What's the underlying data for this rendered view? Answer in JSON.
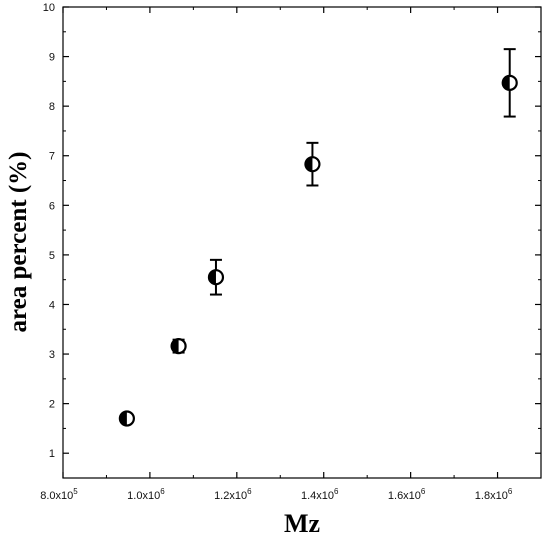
{
  "chart_data": {
    "type": "scatter",
    "xlabel": "Mz",
    "ylabel": "area percent (%)",
    "xlim": [
      800000,
      1900000
    ],
    "ylim": [
      0.5,
      10
    ],
    "x_ticks": [
      {
        "value": 800000,
        "mantissa": "8.0x10",
        "exp": "5"
      },
      {
        "value": 1000000,
        "mantissa": "1.0x10",
        "exp": "6"
      },
      {
        "value": 1200000,
        "mantissa": "1.2x10",
        "exp": "6"
      },
      {
        "value": 1400000,
        "mantissa": "1.4x10",
        "exp": "6"
      },
      {
        "value": 1600000,
        "mantissa": "1.6x10",
        "exp": "6"
      },
      {
        "value": 1800000,
        "mantissa": "1.8x10",
        "exp": "6"
      }
    ],
    "y_ticks": [
      1,
      2,
      3,
      4,
      5,
      6,
      7,
      8,
      9,
      10
    ],
    "points": [
      {
        "x": 947000,
        "y": 1.7,
        "err": 0.08
      },
      {
        "x": 1066000,
        "y": 3.16,
        "err": 0.13
      },
      {
        "x": 1152000,
        "y": 4.55,
        "err": 0.35
      },
      {
        "x": 1374000,
        "y": 6.83,
        "err": 0.43
      },
      {
        "x": 1828000,
        "y": 8.47,
        "err": 0.68
      }
    ],
    "marker": "half-filled-circle",
    "color": "#000000",
    "grid": false
  }
}
